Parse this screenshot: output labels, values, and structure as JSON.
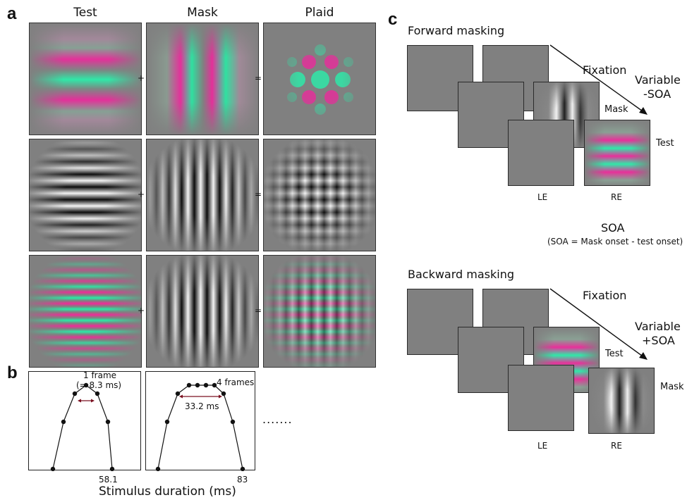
{
  "panel_a": {
    "letter": "a",
    "columns": [
      "Test",
      "Mask",
      "Plaid"
    ],
    "plus": "+",
    "equals": "="
  },
  "panel_b": {
    "letter": "b",
    "plot1": {
      "frame_label": "1 frame",
      "frame_sub": "(= 8.3 ms)",
      "x_tick": "58.1"
    },
    "plot2": {
      "frame_label": "4 frames",
      "duration_label": "33.2 ms",
      "x_tick": "83"
    },
    "ellipsis": ".......",
    "xlabel": "Stimulus duration (ms)"
  },
  "panel_c": {
    "letter": "c",
    "forward": {
      "title": "Forward masking",
      "fixation": "Fixation",
      "variable": "Variable",
      "soa": "-SOA",
      "first": "Mask",
      "second": "Test",
      "le": "LE",
      "re": "RE"
    },
    "soa_title": "SOA",
    "soa_def": "(SOA = Mask onset - test onset)",
    "backward": {
      "title": "Backward masking",
      "fixation": "Fixation",
      "variable": "Variable",
      "soa": "+SOA",
      "first": "Test",
      "second": "Mask",
      "le": "LE",
      "re": "RE"
    }
  },
  "colors": {
    "magenta": "#e8268a",
    "green": "#2ee6a0",
    "gray": "#808080"
  }
}
